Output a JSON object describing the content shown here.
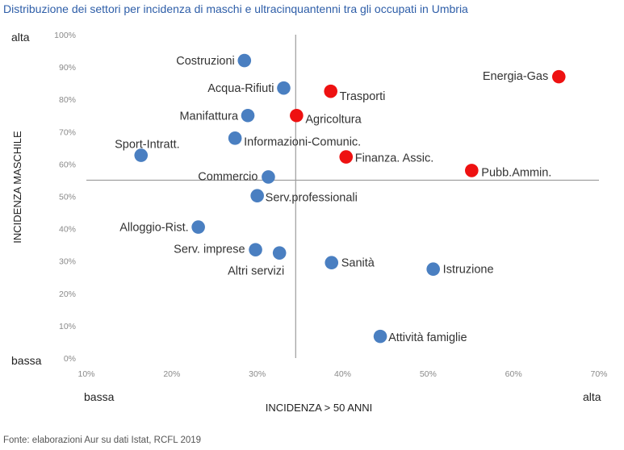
{
  "title": "Distribuzione dei settori per incidenza di maschi e ultracinquantenni tra gli occupati in Umbria",
  "source": "Fonte: elaborazioni Aur su dati Istat, RCFL 2019",
  "colors": {
    "blue": "#4a7fc1",
    "red": "#ee1111",
    "title": "#2e5ea8",
    "axis": "#9b9b9b"
  },
  "chart_data": {
    "type": "scatter",
    "title": "Distribuzione dei settori per incidenza di maschi e ultracinquantenni tra gli occupati in Umbria",
    "xlabel": "INCIDENZA > 50 ANNI",
    "ylabel": "INCIDENZA MASCHILE",
    "xlim": [
      0.1,
      0.7
    ],
    "ylim": [
      0.0,
      1.0
    ],
    "x_ticks": [
      "10%",
      "20%",
      "30%",
      "40%",
      "50%",
      "60%",
      "70%"
    ],
    "y_ticks": [
      "0%",
      "10%",
      "20%",
      "30%",
      "40%",
      "50%",
      "60%",
      "70%",
      "80%",
      "90%",
      "100%"
    ],
    "x_low_label": "bassa",
    "x_high_label": "alta",
    "y_low_label": "bassa",
    "y_high_label": "alta",
    "reference_lines": {
      "x": 0.345,
      "y": 0.55
    },
    "points": [
      {
        "label": "Costruzioni",
        "x": 0.285,
        "y": 0.92,
        "group": "blue"
      },
      {
        "label": "Acqua-Rifiuti",
        "x": 0.331,
        "y": 0.835,
        "group": "blue"
      },
      {
        "label": "Manifattura",
        "x": 0.289,
        "y": 0.75,
        "group": "blue"
      },
      {
        "label": "Informazioni-Comunic.",
        "x": 0.274,
        "y": 0.68,
        "group": "blue"
      },
      {
        "label": "Sport-Intratt.",
        "x": 0.164,
        "y": 0.627,
        "group": "blue"
      },
      {
        "label": "Commercio",
        "x": 0.313,
        "y": 0.56,
        "group": "blue"
      },
      {
        "label": "Serv.professionali",
        "x": 0.3,
        "y": 0.502,
        "group": "blue"
      },
      {
        "label": "Alloggio-Rist.",
        "x": 0.231,
        "y": 0.405,
        "group": "blue"
      },
      {
        "label": "Serv. imprese",
        "x": 0.298,
        "y": 0.335,
        "group": "blue"
      },
      {
        "label": "Altri servizi",
        "x": 0.326,
        "y": 0.325,
        "group": "blue"
      },
      {
        "label": "Sanità",
        "x": 0.387,
        "y": 0.295,
        "group": "blue"
      },
      {
        "label": "Istruzione",
        "x": 0.506,
        "y": 0.275,
        "group": "blue"
      },
      {
        "label": "Attività famiglie",
        "x": 0.444,
        "y": 0.067,
        "group": "blue"
      },
      {
        "label": "Energia-Gas",
        "x": 0.653,
        "y": 0.87,
        "group": "red"
      },
      {
        "label": "Trasporti",
        "x": 0.386,
        "y": 0.825,
        "group": "red"
      },
      {
        "label": "Agricoltura",
        "x": 0.346,
        "y": 0.75,
        "group": "red"
      },
      {
        "label": "Finanza. Assic.",
        "x": 0.404,
        "y": 0.622,
        "group": "red"
      },
      {
        "label": "Pubb.Ammin.",
        "x": 0.551,
        "y": 0.58,
        "group": "red"
      }
    ]
  }
}
